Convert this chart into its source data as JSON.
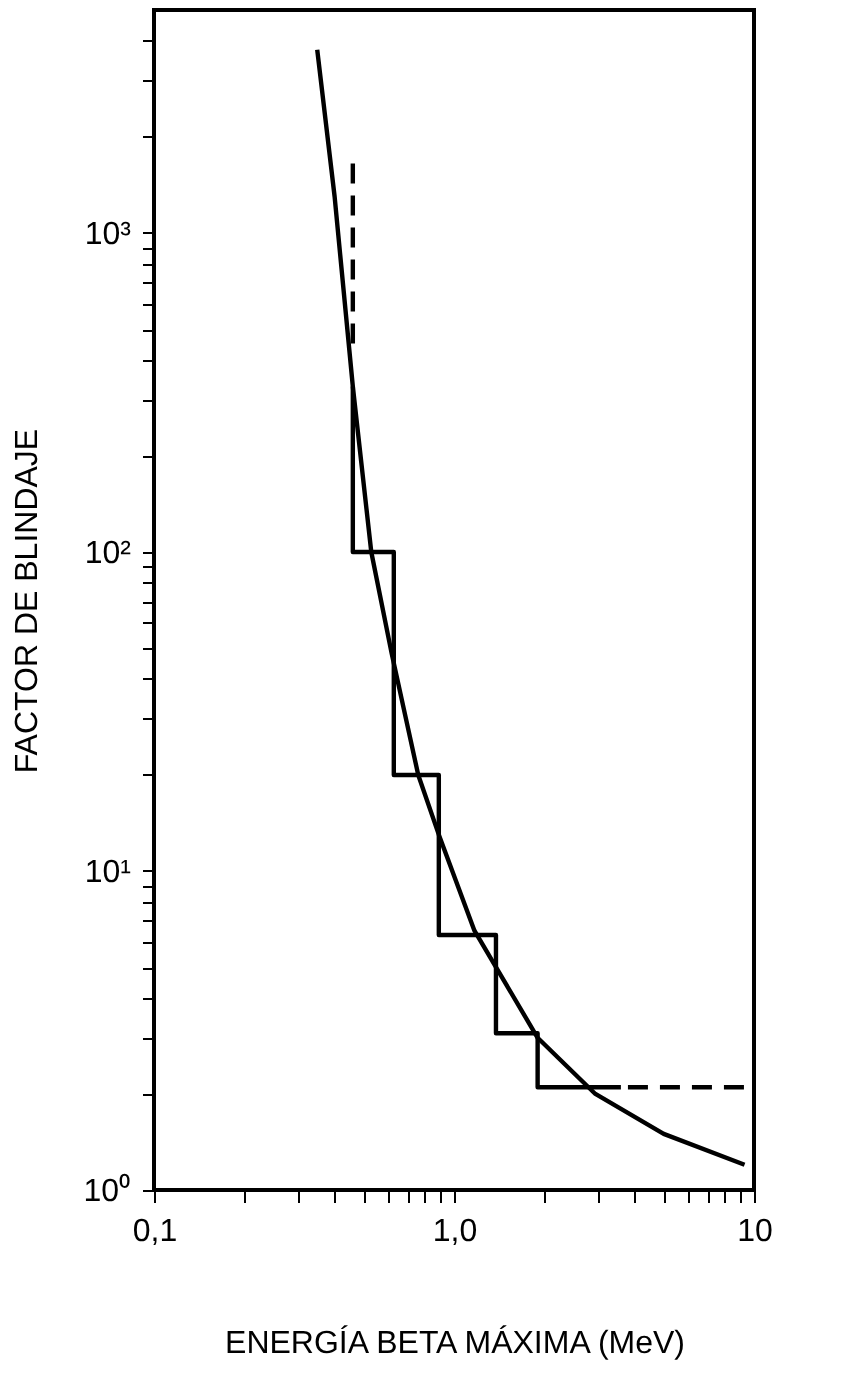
{
  "chart_data": {
    "type": "line",
    "xlabel": "ENERGÍA BETA MÁXIMA (MeV)",
    "ylabel": "FACTOR DE BLINDAJE",
    "log": "xy",
    "grid": false,
    "marker": "none",
    "xlim": [
      0.1,
      10
    ],
    "ylim": [
      1,
      5000
    ],
    "xticks": [
      {
        "value": 0.1,
        "label": "0,1"
      },
      {
        "value": 0.2,
        "label": null
      },
      {
        "value": 0.3,
        "label": null
      },
      {
        "value": 0.4,
        "label": null
      },
      {
        "value": 0.5,
        "label": null
      },
      {
        "value": 0.6,
        "label": null
      },
      {
        "value": 0.7,
        "label": null
      },
      {
        "value": 0.8,
        "label": null
      },
      {
        "value": 0.9,
        "label": null
      },
      {
        "value": 1,
        "label": "1,0"
      },
      {
        "value": 2,
        "label": null
      },
      {
        "value": 3,
        "label": null
      },
      {
        "value": 4,
        "label": null
      },
      {
        "value": 5,
        "label": null
      },
      {
        "value": 6,
        "label": null
      },
      {
        "value": 7,
        "label": null
      },
      {
        "value": 8,
        "label": null
      },
      {
        "value": 9,
        "label": null
      },
      10
    ],
    "yticks": [
      {
        "value": 1,
        "label": "10⁰"
      },
      {
        "value": 2,
        "label": null
      },
      {
        "value": 3,
        "label": null
      },
      {
        "value": 4,
        "label": null
      },
      {
        "value": 5,
        "label": null
      },
      {
        "value": 6,
        "label": null
      },
      {
        "value": 7,
        "label": null
      },
      {
        "value": 8,
        "label": null
      },
      {
        "value": 9,
        "label": null
      },
      {
        "value": 10,
        "label": "10¹"
      },
      {
        "value": 20,
        "label": null
      },
      {
        "value": 30,
        "label": null
      },
      {
        "value": 40,
        "label": null
      },
      {
        "value": 50,
        "label": null
      },
      {
        "value": 60,
        "label": null
      },
      {
        "value": 70,
        "label": null
      },
      {
        "value": 80,
        "label": null
      },
      {
        "value": 90,
        "label": null
      },
      {
        "value": 100,
        "label": "10²"
      },
      {
        "value": 200,
        "label": null
      },
      {
        "value": 300,
        "label": null
      },
      {
        "value": 400,
        "label": null
      },
      {
        "value": 500,
        "label": null
      },
      {
        "value": 600,
        "label": null
      },
      {
        "value": 700,
        "label": null
      },
      {
        "value": 800,
        "label": null
      },
      {
        "value": 900,
        "label": null
      },
      {
        "value": 1000,
        "label": "10³"
      },
      {
        "value": 2000,
        "label": null
      },
      {
        "value": 3000,
        "label": null
      },
      {
        "value": 4000,
        "label": null
      }
    ],
    "series": [
      {
        "color": "#000000",
        "line_style": "solid",
        "x": [
          0.35,
          0.4,
          0.46,
          0.53,
          0.62,
          0.76,
          0.89,
          1.17,
          1.38,
          1.9,
          2.96,
          5.0,
          9.3
        ],
        "values": [
          3750,
          1300,
          330,
          100,
          48,
          20,
          13,
          6.5,
          5.0,
          3.0,
          2.0,
          1.5,
          1.2
        ]
      },
      {
        "color": "#000000",
        "line_style": "solid",
        "x": [
          0.46,
          0.46,
          0.63,
          0.63,
          0.89,
          0.89,
          1.38,
          1.38,
          1.9,
          1.9,
          3.6
        ],
        "values": [
          330,
          100,
          100,
          20,
          20,
          6.3,
          6.3,
          3.1,
          3.1,
          2.1,
          2.1
        ]
      },
      {
        "color": "#000000",
        "line_style": "dashed",
        "x": [
          0.46,
          0.46
        ],
        "values": [
          1650,
          420
        ]
      },
      {
        "color": "#000000",
        "line_style": "dashed",
        "x": [
          3.8,
          9.3
        ],
        "values": [
          2.1,
          2.1
        ]
      }
    ]
  }
}
